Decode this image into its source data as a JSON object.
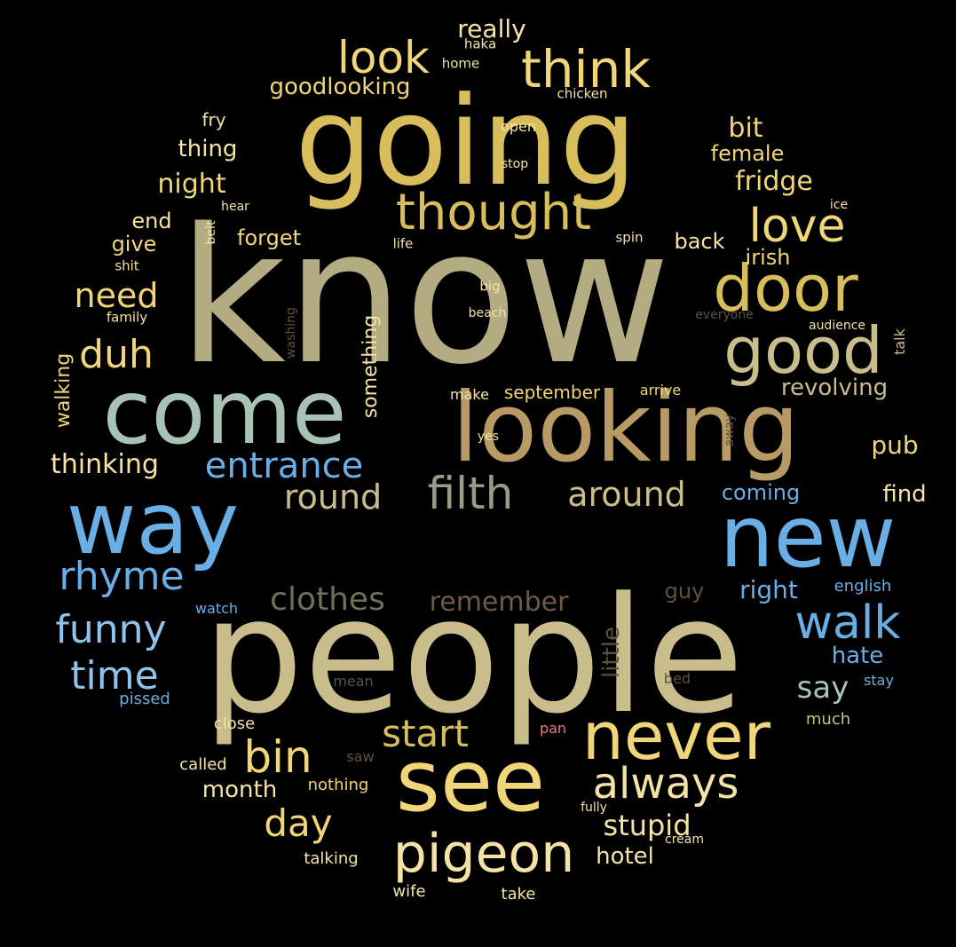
{
  "palette": {
    "background": "#000000",
    "gold": "#d8bd5c",
    "khaki": "#b3ac82",
    "sage": "#a8c3b5",
    "tan": "#b89a64",
    "beige": "#c9bd8c",
    "yellow": "#f0d678",
    "cream": "#f5e3a6",
    "blue": "#6aaee6",
    "lightblue": "#8ec3eb",
    "grey": "#9a9a86",
    "olive": "#707058",
    "brown": "#6f5a47",
    "darkbrown": "#5e5140",
    "pink": "#e57a85"
  },
  "words": [
    {
      "text": "know",
      "color": "#b3ac82",
      "weight": 10
    },
    {
      "text": "people",
      "color": "#c9bd8c",
      "weight": 10
    },
    {
      "text": "going",
      "color": "#d8bd5c",
      "weight": 9
    },
    {
      "text": "looking",
      "color": "#b89a64",
      "weight": 8
    },
    {
      "text": "come",
      "color": "#a8c3b5",
      "weight": 8
    },
    {
      "text": "new",
      "color": "#6aaee6",
      "weight": 7
    },
    {
      "text": "see",
      "color": "#f0d678",
      "weight": 7
    },
    {
      "text": "way",
      "color": "#6aaee6",
      "weight": 7
    },
    {
      "text": "never",
      "color": "#f0d678",
      "weight": 6
    },
    {
      "text": "good",
      "color": "#c9bd8c",
      "weight": 6
    },
    {
      "text": "door",
      "color": "#d8bd5c",
      "weight": 6
    },
    {
      "text": "think",
      "color": "#f0d678",
      "weight": 6
    },
    {
      "text": "thought",
      "color": "#d8bd5c",
      "weight": 5
    },
    {
      "text": "pigeon",
      "color": "#f5e3a6",
      "weight": 5
    },
    {
      "text": "look",
      "color": "#f0d678",
      "weight": 5
    },
    {
      "text": "walk",
      "color": "#6aaee6",
      "weight": 5
    },
    {
      "text": "love",
      "color": "#f0d678",
      "weight": 5
    },
    {
      "text": "filth",
      "color": "#9a9a86",
      "weight": 5
    },
    {
      "text": "bin",
      "color": "#f0d678",
      "weight": 5
    },
    {
      "text": "always",
      "color": "#f5e3a6",
      "weight": 5
    },
    {
      "text": "entrance",
      "color": "#6aaee6",
      "weight": 4
    },
    {
      "text": "funny",
      "color": "#8ec3eb",
      "weight": 4
    },
    {
      "text": "rhyme",
      "color": "#6aaee6",
      "weight": 4
    },
    {
      "text": "start",
      "color": "#d8bd5c",
      "weight": 4
    },
    {
      "text": "duh",
      "color": "#f0d678",
      "weight": 4
    },
    {
      "text": "time",
      "color": "#8ec3eb",
      "weight": 4
    },
    {
      "text": "around",
      "color": "#c9bd8c",
      "weight": 4
    },
    {
      "text": "day",
      "color": "#f0d678",
      "weight": 4
    },
    {
      "text": "round",
      "color": "#c9bd8c",
      "weight": 4
    },
    {
      "text": "clothes",
      "color": "#707058",
      "weight": 4
    },
    {
      "text": "need",
      "color": "#f0d678",
      "weight": 4
    },
    {
      "text": "stupid",
      "color": "#f5e3a6",
      "weight": 3
    },
    {
      "text": "say",
      "color": "#a8c3b5",
      "weight": 3
    },
    {
      "text": "remember",
      "color": "#6f5a47",
      "weight": 3
    },
    {
      "text": "thinking",
      "color": "#f5e3a6",
      "weight": 3
    },
    {
      "text": "goodlooking",
      "color": "#f0d678",
      "weight": 3
    },
    {
      "text": "night",
      "color": "#f0d678",
      "weight": 3
    },
    {
      "text": "fridge",
      "color": "#f0d678",
      "weight": 3
    },
    {
      "text": "revolving",
      "color": "#c9bd8c",
      "weight": 3
    },
    {
      "text": "hotel",
      "color": "#f5e3a6",
      "weight": 3
    },
    {
      "text": "bit",
      "color": "#f0d678",
      "weight": 3
    },
    {
      "text": "right",
      "color": "#6aaee6",
      "weight": 3
    },
    {
      "text": "really",
      "color": "#f5e3a6",
      "weight": 3
    },
    {
      "text": "month",
      "color": "#f5e3a6",
      "weight": 3
    },
    {
      "text": "hate",
      "color": "#6aaee6",
      "weight": 3
    },
    {
      "text": "thing",
      "color": "#f5e3a6",
      "weight": 3
    },
    {
      "text": "coming",
      "color": "#6aaee6",
      "weight": 3
    },
    {
      "text": "something",
      "color": "#f5e3a6",
      "weight": 3
    },
    {
      "text": "little",
      "color": "#5e5140",
      "weight": 3
    },
    {
      "text": "forget",
      "color": "#f0d678",
      "weight": 3
    },
    {
      "text": "pub",
      "color": "#f0d678",
      "weight": 3
    },
    {
      "text": "find",
      "color": "#f5e3a6",
      "weight": 3
    },
    {
      "text": "female",
      "color": "#f0d678",
      "weight": 3
    },
    {
      "text": "back",
      "color": "#f5e3a6",
      "weight": 3
    },
    {
      "text": "irish",
      "color": "#f0d678",
      "weight": 3
    },
    {
      "text": "give",
      "color": "#f0d678",
      "weight": 3
    },
    {
      "text": "end",
      "color": "#f5e3a6",
      "weight": 3
    },
    {
      "text": "guy",
      "color": "#5e5140",
      "weight": 3
    },
    {
      "text": "walking",
      "color": "#f0d678",
      "weight": 3
    },
    {
      "text": "september",
      "color": "#f0d678",
      "weight": 2
    },
    {
      "text": "fry",
      "color": "#f5e3a6",
      "weight": 2
    },
    {
      "text": "english",
      "color": "#6aaee6",
      "weight": 2
    },
    {
      "text": "close",
      "color": "#f5e3a6",
      "weight": 2
    },
    {
      "text": "talking",
      "color": "#f5e3a6",
      "weight": 2
    },
    {
      "text": "called",
      "color": "#f5e3a6",
      "weight": 2
    },
    {
      "text": "nothing",
      "color": "#f0d678",
      "weight": 2
    },
    {
      "text": "make",
      "color": "#f5e3a6",
      "weight": 2
    },
    {
      "text": "arrive",
      "color": "#f0d678",
      "weight": 2
    },
    {
      "text": "watch",
      "color": "#6aaee6",
      "weight": 2
    },
    {
      "text": "pissed",
      "color": "#6aaee6",
      "weight": 2
    },
    {
      "text": "much",
      "color": "#c9bd8c",
      "weight": 2
    },
    {
      "text": "talk",
      "color": "#c9bd8c",
      "weight": 2
    },
    {
      "text": "take",
      "color": "#f5e3a6",
      "weight": 2
    },
    {
      "text": "wife",
      "color": "#f5e3a6",
      "weight": 2
    },
    {
      "text": "stay",
      "color": "#6aaee6",
      "weight": 2
    },
    {
      "text": "mean",
      "color": "#5e5140",
      "weight": 2
    },
    {
      "text": "bed",
      "color": "#5e5140",
      "weight": 2
    },
    {
      "text": "open",
      "color": "#f5e3a6",
      "weight": 2
    },
    {
      "text": "home",
      "color": "#f5e3a6",
      "weight": 2
    },
    {
      "text": "chicken",
      "color": "#f5e3a6",
      "weight": 2
    },
    {
      "text": "haka",
      "color": "#f5e3a6",
      "weight": 2
    },
    {
      "text": "stop",
      "color": "#f5e3a6",
      "weight": 2
    },
    {
      "text": "hear",
      "color": "#f5e3a6",
      "weight": 2
    },
    {
      "text": "belt",
      "color": "#f5e3a6",
      "weight": 2
    },
    {
      "text": "life",
      "color": "#f5e3a6",
      "weight": 2
    },
    {
      "text": "spin",
      "color": "#f5e3a6",
      "weight": 2
    },
    {
      "text": "ice",
      "color": "#f5e3a6",
      "weight": 2
    },
    {
      "text": "shit",
      "color": "#f5e3a6",
      "weight": 2
    },
    {
      "text": "family",
      "color": "#f5e3a6",
      "weight": 2
    },
    {
      "text": "big",
      "color": "#f5e3a6",
      "weight": 2
    },
    {
      "text": "beach",
      "color": "#f5e3a6",
      "weight": 2
    },
    {
      "text": "everyone",
      "color": "#5e5140",
      "weight": 2
    },
    {
      "text": "audience",
      "color": "#f5e3a6",
      "weight": 2
    },
    {
      "text": "washing",
      "color": "#5e5140",
      "weight": 2
    },
    {
      "text": "yes",
      "color": "#f5e3a6",
      "weight": 2
    },
    {
      "text": "away",
      "color": "#5e5140",
      "weight": 2
    },
    {
      "text": "saw",
      "color": "#5e5140",
      "weight": 2
    },
    {
      "text": "fully",
      "color": "#f5e3a6",
      "weight": 2
    },
    {
      "text": "cream",
      "color": "#f5e3a6",
      "weight": 2
    },
    {
      "text": "pan",
      "color": "#e57a85",
      "weight": 2
    }
  ]
}
